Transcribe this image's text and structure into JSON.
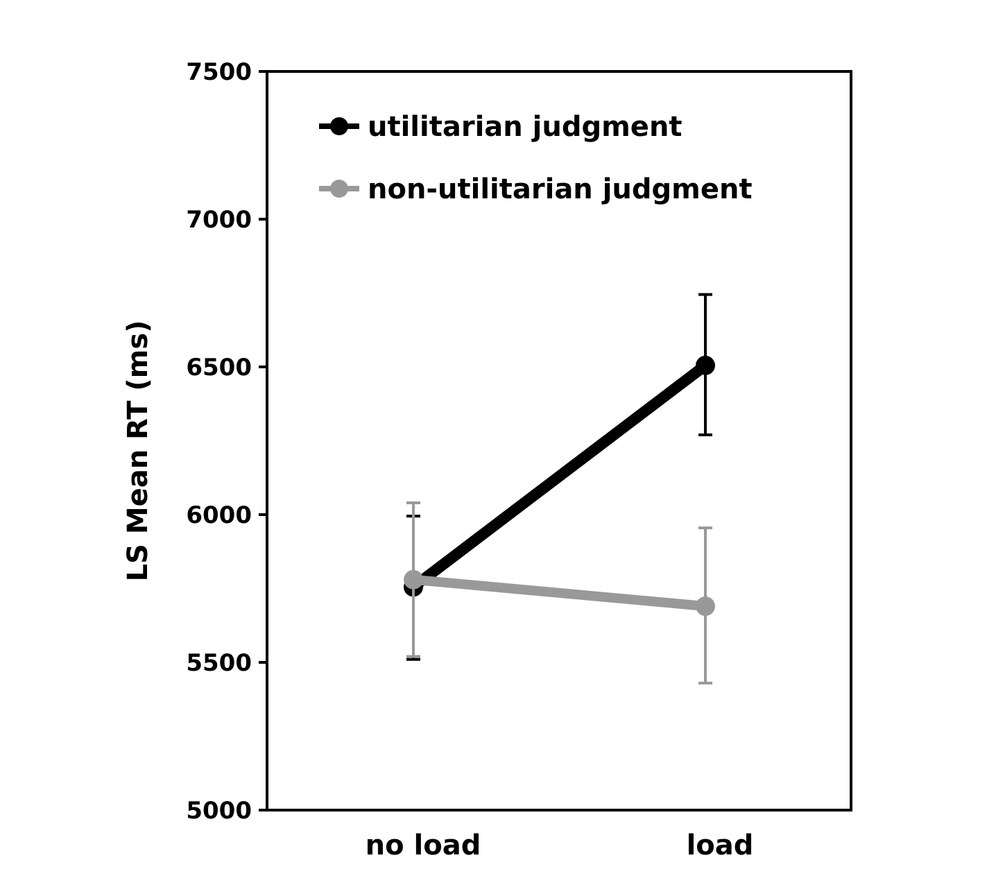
{
  "chart_data": {
    "type": "line",
    "categories": [
      "no load",
      "load"
    ],
    "ylabel": "LS Mean RT (ms)",
    "ylim": [
      5000,
      7500
    ],
    "yticks": [
      5000,
      5500,
      6000,
      6500,
      7000,
      7500
    ],
    "ytick_labels": [
      "5000",
      "5500",
      "6000",
      "6500",
      "7000",
      "7500"
    ],
    "grid": false,
    "legend_position": "top-left",
    "series": [
      {
        "name": "utilitarian judgment",
        "color": "#000000",
        "values": [
          5755,
          6505
        ],
        "error_low": [
          5510,
          6270
        ],
        "error_high": [
          5995,
          6745
        ]
      },
      {
        "name": "non-utilitarian judgment",
        "color": "#999999",
        "values": [
          5780,
          5690
        ],
        "error_low": [
          5520,
          5430
        ],
        "error_high": [
          6040,
          5955
        ]
      }
    ]
  }
}
